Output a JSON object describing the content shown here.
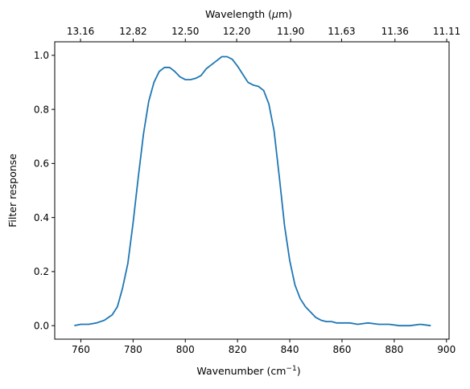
{
  "chart_data": {
    "type": "line",
    "xlabel": "Wavenumber (cm",
    "xlabel_sup": "−1",
    "xlabel_end": ")",
    "ylabel": "Filter response",
    "top_label_prefix": "Wavelength (",
    "top_label_mu": "μ",
    "top_label_suffix": "m)",
    "xlim": [
      750,
      901
    ],
    "ylim": [
      -0.05,
      1.05
    ],
    "x_ticks": [
      "760",
      "780",
      "800",
      "820",
      "840",
      "860",
      "880",
      "900"
    ],
    "y_ticks": [
      "0.0",
      "0.2",
      "0.4",
      "0.6",
      "0.8",
      "1.0"
    ],
    "top_ticks": [
      "13.16",
      "12.82",
      "12.50",
      "12.20",
      "11.90",
      "11.63",
      "11.36",
      "11.11"
    ],
    "line_color": "#1f77b4",
    "series": [
      {
        "x": [
          757.5,
          760,
          763,
          766,
          769,
          772,
          774,
          776,
          778,
          780,
          782,
          784,
          786,
          788,
          790,
          792,
          794,
          796,
          798,
          800,
          802,
          804,
          806,
          808,
          810,
          812,
          814,
          816,
          818,
          820,
          822,
          824,
          826,
          828,
          830,
          832,
          834,
          836,
          838,
          840,
          842,
          844,
          846,
          848,
          850,
          852,
          854,
          856,
          858,
          860,
          863,
          866,
          870,
          874,
          878,
          882,
          886,
          890,
          894
        ],
        "y": [
          0.0,
          0.005,
          0.005,
          0.01,
          0.02,
          0.04,
          0.07,
          0.14,
          0.23,
          0.38,
          0.55,
          0.71,
          0.83,
          0.9,
          0.94,
          0.955,
          0.955,
          0.94,
          0.92,
          0.91,
          0.91,
          0.915,
          0.925,
          0.95,
          0.965,
          0.98,
          0.995,
          0.995,
          0.985,
          0.96,
          0.93,
          0.9,
          0.89,
          0.885,
          0.87,
          0.82,
          0.72,
          0.55,
          0.37,
          0.24,
          0.15,
          0.1,
          0.07,
          0.05,
          0.03,
          0.02,
          0.015,
          0.015,
          0.01,
          0.01,
          0.01,
          0.005,
          0.01,
          0.005,
          0.005,
          0.0,
          0.0,
          0.005,
          0.0
        ]
      }
    ]
  }
}
